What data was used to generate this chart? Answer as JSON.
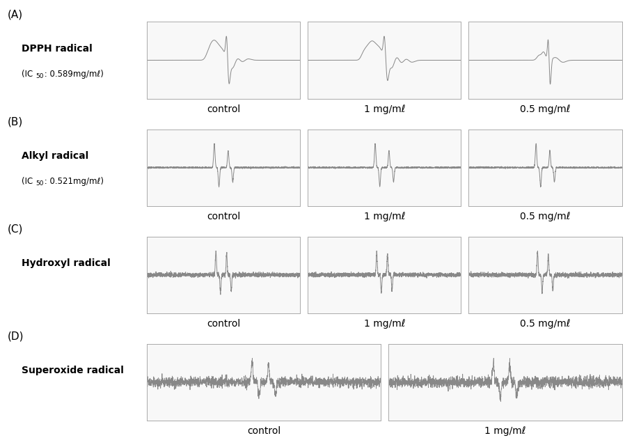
{
  "title": "",
  "background_color": "#ffffff",
  "rows": [
    {
      "label": "(A)",
      "radical_name": "DPPH radical",
      "ic50_line1": "(IC",
      "ic50_50": "50",
      "ic50_line2": " : 0.589mg/mℓ)",
      "num_panels": 3,
      "panel_labels": [
        "control",
        "1 mg/mℓ",
        "0.5 mg/mℓ"
      ],
      "signal_type": "dpph"
    },
    {
      "label": "(B)",
      "radical_name": "Alkyl radical",
      "ic50_line1": "(IC",
      "ic50_50": "50",
      "ic50_line2": " : 0.521mg/mℓ)",
      "num_panels": 3,
      "panel_labels": [
        "control",
        "1 mg/mℓ",
        "0.5 mg/mℓ"
      ],
      "signal_type": "alkyl"
    },
    {
      "label": "(C)",
      "radical_name": "Hydroxyl radical",
      "ic50_line1": "",
      "ic50_50": "",
      "ic50_line2": "",
      "num_panels": 3,
      "panel_labels": [
        "control",
        "1 mg/mℓ",
        "0.5 mg/mℓ"
      ],
      "signal_type": "hydroxyl"
    },
    {
      "label": "(D)",
      "radical_name": "Superoxide radical",
      "ic50_line1": "",
      "ic50_50": "",
      "ic50_line2": "",
      "num_panels": 2,
      "panel_labels": [
        "control",
        "1 mg/mℓ"
      ],
      "signal_type": "superoxide"
    }
  ],
  "text_color": "#000000",
  "line_color": "#888888",
  "panel_border_color": "#000000"
}
